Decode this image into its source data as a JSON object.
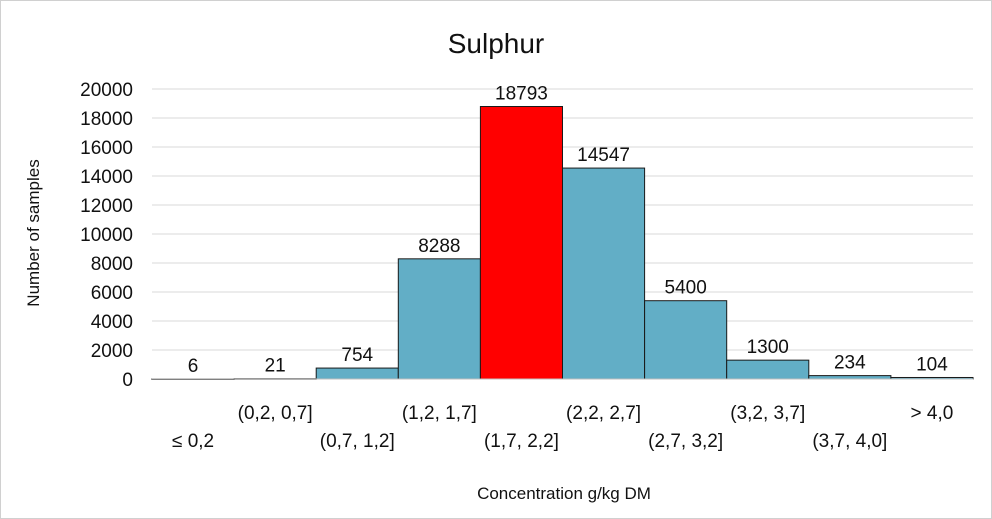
{
  "chart_data": {
    "type": "bar",
    "title": "Sulphur",
    "xlabel": "Concentration g/kg DM",
    "ylabel": "Number of samples",
    "ylim": [
      0,
      20000
    ],
    "yticks": [
      "0",
      "2000",
      "4000",
      "6000",
      "8000",
      "10000",
      "12000",
      "14000",
      "16000",
      "18000",
      "20000"
    ],
    "categories": [
      "≤ 0,2",
      "(0,2, 0,7]",
      "(0,7, 1,2]",
      "(1,2, 1,7]",
      "(1,7, 2,2]",
      "(2,2, 2,7]",
      "(2,7, 3,2]",
      "(3,2, 3,7]",
      "(3,7, 4,0]",
      "> 4,0"
    ],
    "values": [
      6,
      21,
      754,
      8288,
      18793,
      14547,
      5400,
      1300,
      234,
      104
    ],
    "value_labels": [
      "6",
      "21",
      "754",
      "8288",
      "18793",
      "14547",
      "5400",
      "1300",
      "234",
      "104"
    ],
    "grid": true,
    "colors": {
      "default": "#62aec6",
      "highlight": "#ff0000",
      "highlight_index": 4
    }
  }
}
